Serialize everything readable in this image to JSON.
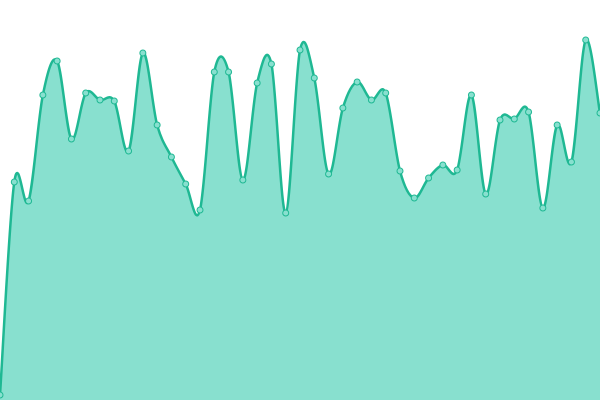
{
  "chart_data": {
    "type": "area",
    "categories": [
      null,
      null,
      null,
      null,
      null,
      null,
      null,
      null,
      null,
      null,
      null,
      null,
      null,
      null,
      null,
      null,
      null,
      null,
      null,
      null,
      null,
      null,
      null,
      null,
      null,
      null,
      null,
      null,
      null,
      null,
      null,
      null,
      null,
      null,
      null,
      null,
      null,
      null,
      null,
      null,
      null,
      null,
      null
    ],
    "values": [
      5,
      218,
      199,
      305,
      339,
      261,
      307,
      300,
      299,
      249,
      347,
      275,
      243,
      216,
      190,
      328,
      328,
      220,
      317,
      336,
      187,
      350,
      322,
      226,
      292,
      318,
      300,
      307,
      229,
      202,
      222,
      235,
      230,
      305,
      206,
      280,
      281,
      288,
      192,
      275,
      238,
      360,
      287
    ],
    "color": "#1fb893",
    "fill": "#88e0cf",
    "ylim": [
      0,
      400
    ]
  }
}
